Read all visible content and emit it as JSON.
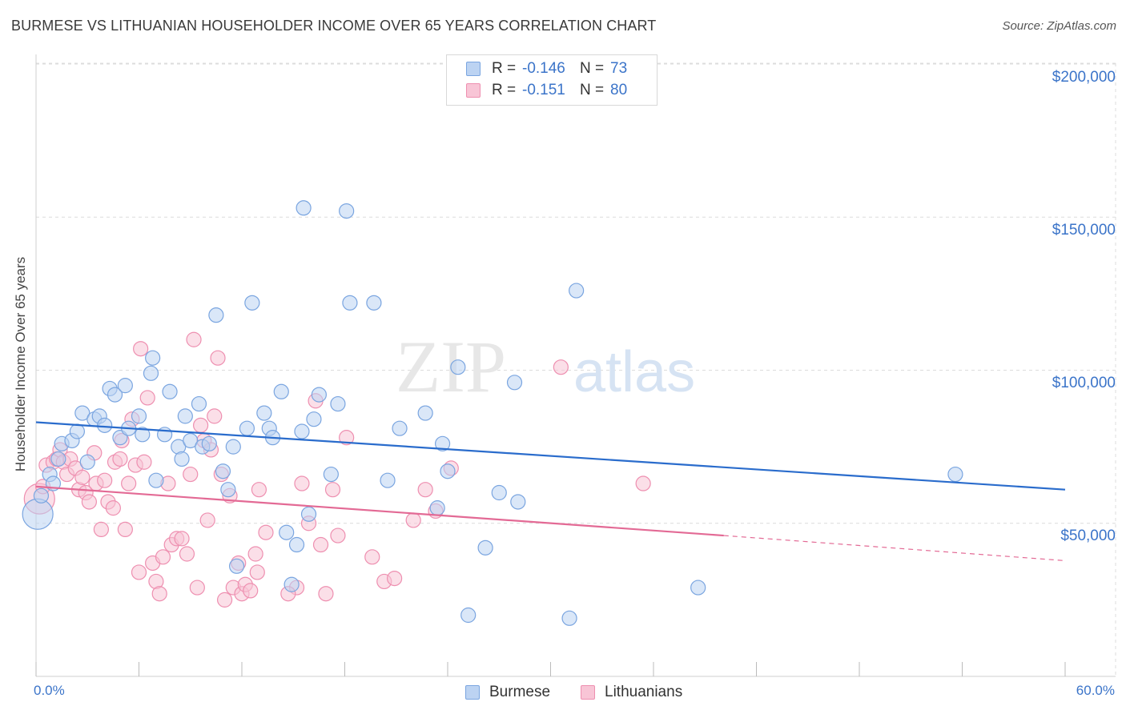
{
  "title": "BURMESE VS LITHUANIAN HOUSEHOLDER INCOME OVER 65 YEARS CORRELATION CHART",
  "source": "Source: ZipAtlas.com",
  "watermark": {
    "zip": "ZIP",
    "atlas": "atlas"
  },
  "legend_top": {
    "rows": [
      {
        "r_label": "R =",
        "r_value": "-0.146",
        "n_label": "N =",
        "n_value": "73"
      },
      {
        "r_label": "R =",
        "r_value": "-0.151",
        "n_label": "N =",
        "n_value": "80"
      }
    ]
  },
  "legend_bottom": {
    "burmese": "Burmese",
    "lithuanians": "Lithuanians"
  },
  "colors": {
    "burmese_fill": "#bcd3f2",
    "burmese_stroke": "#7aa5e0",
    "burmese_line": "#2a6ccc",
    "lith_fill": "#f8c5d6",
    "lith_stroke": "#ee8fb0",
    "lith_line": "#e36a95",
    "axis_text": "#3b74c9",
    "grid": "#dcdcdc"
  },
  "chart_data": {
    "type": "scatter",
    "title": "BURMESE VS LITHUANIAN HOUSEHOLDER INCOME OVER 65 YEARS CORRELATION CHART",
    "xlabel": "",
    "ylabel": "Householder Income Over 65 years",
    "x_tick_labels": [
      "0.0%",
      "60.0%"
    ],
    "y_tick_labels": [
      "$50,000",
      "$100,000",
      "$150,000",
      "$200,000"
    ],
    "xlim": [
      0,
      60
    ],
    "ylim": [
      0,
      205000
    ],
    "y_ticks": [
      50000,
      100000,
      150000,
      200000
    ],
    "grid": true,
    "legend_placement": "top-center",
    "series": [
      {
        "name": "Burmese",
        "r": -0.146,
        "n": 73,
        "trend": {
          "x0": 0,
          "y0": 83000,
          "x1": 60,
          "y1": 61000
        },
        "points": [
          [
            0.1,
            53000,
            2
          ],
          [
            0.3,
            59000,
            1
          ],
          [
            0.8,
            66000,
            1
          ],
          [
            1.0,
            63000,
            1
          ],
          [
            1.3,
            71000,
            1
          ],
          [
            1.5,
            76000,
            1
          ],
          [
            2.1,
            77000,
            1
          ],
          [
            2.4,
            80000,
            1
          ],
          [
            2.7,
            86000,
            1
          ],
          [
            3.0,
            70000,
            1
          ],
          [
            3.4,
            84000,
            1
          ],
          [
            3.7,
            85000,
            1
          ],
          [
            4.0,
            82000,
            1
          ],
          [
            4.3,
            94000,
            1
          ],
          [
            4.6,
            92000,
            1
          ],
          [
            4.9,
            78000,
            1
          ],
          [
            5.2,
            95000,
            1
          ],
          [
            5.4,
            81000,
            1
          ],
          [
            6.0,
            85000,
            1
          ],
          [
            6.2,
            79000,
            1
          ],
          [
            6.7,
            99000,
            1
          ],
          [
            6.8,
            104000,
            1
          ],
          [
            7.0,
            64000,
            1
          ],
          [
            7.5,
            79000,
            1
          ],
          [
            7.8,
            93000,
            1
          ],
          [
            8.3,
            75000,
            1
          ],
          [
            8.5,
            71000,
            1
          ],
          [
            8.7,
            85000,
            1
          ],
          [
            9.0,
            77000,
            1
          ],
          [
            9.5,
            89000,
            1
          ],
          [
            9.7,
            75000,
            1
          ],
          [
            10.1,
            76000,
            1
          ],
          [
            10.5,
            118000,
            1
          ],
          [
            10.9,
            67000,
            1
          ],
          [
            11.2,
            61000,
            1
          ],
          [
            11.5,
            75000,
            1
          ],
          [
            11.7,
            36000,
            1
          ],
          [
            12.3,
            81000,
            1
          ],
          [
            12.6,
            122000,
            1
          ],
          [
            13.3,
            86000,
            1
          ],
          [
            13.6,
            81000,
            1
          ],
          [
            13.8,
            78000,
            1
          ],
          [
            14.3,
            93000,
            1
          ],
          [
            14.6,
            47000,
            1
          ],
          [
            14.9,
            30000,
            1
          ],
          [
            15.2,
            43000,
            1
          ],
          [
            15.5,
            80000,
            1
          ],
          [
            15.6,
            153000,
            1
          ],
          [
            15.9,
            53000,
            1
          ],
          [
            16.2,
            84000,
            1
          ],
          [
            16.5,
            92000,
            1
          ],
          [
            17.2,
            66000,
            1
          ],
          [
            17.6,
            89000,
            1
          ],
          [
            18.1,
            152000,
            1
          ],
          [
            18.3,
            122000,
            1
          ],
          [
            19.7,
            122000,
            1
          ],
          [
            20.5,
            64000,
            1
          ],
          [
            21.2,
            81000,
            1
          ],
          [
            22.7,
            86000,
            1
          ],
          [
            23.4,
            55000,
            1
          ],
          [
            23.7,
            76000,
            1
          ],
          [
            24.0,
            67000,
            1
          ],
          [
            24.6,
            101000,
            1
          ],
          [
            25.2,
            20000,
            1
          ],
          [
            26.2,
            42000,
            1
          ],
          [
            27.0,
            60000,
            1
          ],
          [
            27.9,
            96000,
            1
          ],
          [
            28.1,
            57000,
            1
          ],
          [
            31.1,
            19000,
            1
          ],
          [
            31.5,
            126000,
            1
          ],
          [
            38.6,
            29000,
            1
          ],
          [
            53.6,
            66000,
            1
          ]
        ]
      },
      {
        "name": "Lithuanians",
        "r": -0.151,
        "n": 80,
        "trend": {
          "x0": 0,
          "y0": 62000,
          "x1": 40.1,
          "y1": 46000
        },
        "trend_dashed": {
          "x0": 40.1,
          "y0": 46000,
          "x1": 60,
          "y1": 37800
        },
        "points": [
          [
            0.2,
            58000,
            2
          ],
          [
            0.4,
            62000,
            1
          ],
          [
            0.6,
            69000,
            1
          ],
          [
            1.0,
            70000,
            1
          ],
          [
            1.2,
            71000,
            1
          ],
          [
            1.4,
            74000,
            1
          ],
          [
            1.6,
            70000,
            1
          ],
          [
            1.8,
            66000,
            1
          ],
          [
            2.0,
            71000,
            1
          ],
          [
            2.3,
            68000,
            1
          ],
          [
            2.5,
            61000,
            1
          ],
          [
            2.7,
            65000,
            1
          ],
          [
            2.9,
            60000,
            1
          ],
          [
            3.1,
            57000,
            1
          ],
          [
            3.4,
            73000,
            1
          ],
          [
            3.5,
            63000,
            1
          ],
          [
            3.8,
            48000,
            1
          ],
          [
            4.0,
            64000,
            1
          ],
          [
            4.2,
            57000,
            1
          ],
          [
            4.5,
            55000,
            1
          ],
          [
            4.6,
            70000,
            1
          ],
          [
            4.9,
            71000,
            1
          ],
          [
            5.0,
            77000,
            1
          ],
          [
            5.2,
            48000,
            1
          ],
          [
            5.4,
            63000,
            1
          ],
          [
            5.6,
            84000,
            1
          ],
          [
            5.8,
            69000,
            1
          ],
          [
            6.0,
            34000,
            1
          ],
          [
            6.1,
            107000,
            1
          ],
          [
            6.3,
            70000,
            1
          ],
          [
            6.5,
            91000,
            1
          ],
          [
            6.8,
            37000,
            1
          ],
          [
            7.0,
            31000,
            1
          ],
          [
            7.2,
            27000,
            1
          ],
          [
            7.4,
            39000,
            1
          ],
          [
            7.7,
            63000,
            1
          ],
          [
            7.9,
            43000,
            1
          ],
          [
            8.2,
            45000,
            1
          ],
          [
            8.5,
            45000,
            1
          ],
          [
            8.8,
            40000,
            1
          ],
          [
            9.0,
            66000,
            1
          ],
          [
            9.2,
            110000,
            1
          ],
          [
            9.4,
            29000,
            1
          ],
          [
            9.6,
            82000,
            1
          ],
          [
            9.8,
            77000,
            1
          ],
          [
            10.0,
            51000,
            1
          ],
          [
            10.2,
            74000,
            1
          ],
          [
            10.4,
            85000,
            1
          ],
          [
            10.6,
            104000,
            1
          ],
          [
            10.8,
            66000,
            1
          ],
          [
            11.0,
            25000,
            1
          ],
          [
            11.3,
            59000,
            1
          ],
          [
            11.5,
            29000,
            1
          ],
          [
            11.8,
            37000,
            1
          ],
          [
            12.0,
            27000,
            1
          ],
          [
            12.2,
            30000,
            1
          ],
          [
            12.5,
            28000,
            1
          ],
          [
            12.8,
            40000,
            1
          ],
          [
            13.0,
            61000,
            1
          ],
          [
            13.4,
            47000,
            1
          ],
          [
            15.2,
            29000,
            1
          ],
          [
            15.5,
            63000,
            1
          ],
          [
            15.9,
            50000,
            1
          ],
          [
            16.3,
            90000,
            1
          ],
          [
            16.6,
            43000,
            1
          ],
          [
            16.9,
            27000,
            1
          ],
          [
            17.3,
            61000,
            1
          ],
          [
            17.6,
            46000,
            1
          ],
          [
            18.1,
            78000,
            1
          ],
          [
            19.6,
            39000,
            1
          ],
          [
            20.3,
            31000,
            1
          ],
          [
            20.9,
            32000,
            1
          ],
          [
            22.0,
            51000,
            1
          ],
          [
            22.7,
            61000,
            1
          ],
          [
            23.3,
            54000,
            1
          ],
          [
            24.2,
            68000,
            1
          ],
          [
            30.6,
            101000,
            1
          ],
          [
            35.4,
            63000,
            1
          ],
          [
            12.9,
            34000,
            1
          ],
          [
            14.7,
            27000,
            1
          ]
        ]
      }
    ]
  }
}
